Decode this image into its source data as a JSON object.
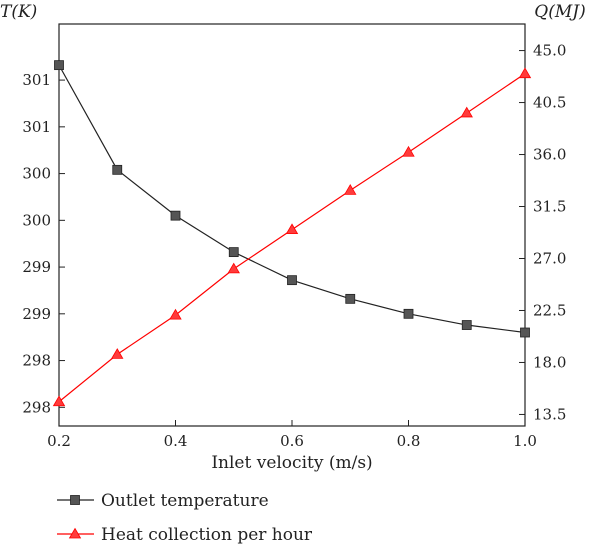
{
  "chart_data": {
    "type": "line",
    "xlabel": "Inlet velocity (m/s)",
    "ylabel_left": "T(K)",
    "ylabel_right": "Q(MJ)",
    "x": [
      0.2,
      0.3,
      0.4,
      0.5,
      0.6,
      0.7,
      0.8,
      0.9,
      1.0
    ],
    "xlim": [
      0.2,
      1.0
    ],
    "xticks": [
      "0.2",
      "0.4",
      "0.6",
      "0.8",
      "1.0"
    ],
    "xtick_values": [
      0.2,
      0.4,
      0.6,
      0.8,
      1.0
    ],
    "ylim_left": [
      297.4,
      301.7
    ],
    "yticks_left": [
      "298",
      "298",
      "299",
      "299",
      "300",
      "300",
      "301",
      "301"
    ],
    "ytick_values_left": [
      297.6,
      298.1,
      298.6,
      299.1,
      299.6,
      300.1,
      300.6,
      301.1
    ],
    "ylim_right": [
      12.5,
      47.3
    ],
    "yticks_right": [
      "13.5",
      "18.0",
      "22.5",
      "27.0",
      "31.5",
      "36.0",
      "40.5",
      "45.0"
    ],
    "ytick_values_right": [
      13.5,
      18.0,
      22.5,
      27.0,
      31.5,
      36.0,
      40.5,
      45.0
    ],
    "grid": false,
    "legend_position": "bottom",
    "series": [
      {
        "name": "Outlet temperature",
        "axis": "left",
        "marker": "square",
        "color": "#222222",
        "marker_color": "#555555",
        "values": [
          301.26,
          300.14,
          299.65,
          299.26,
          298.96,
          298.76,
          298.6,
          298.48,
          298.4
        ]
      },
      {
        "name": "Heat collection per hour",
        "axis": "right",
        "marker": "triangle",
        "color": "#ff0000",
        "marker_color": "#ff3b3b",
        "values": [
          14.6,
          18.7,
          22.1,
          26.1,
          29.5,
          32.9,
          36.2,
          39.6,
          43.0
        ]
      }
    ]
  }
}
